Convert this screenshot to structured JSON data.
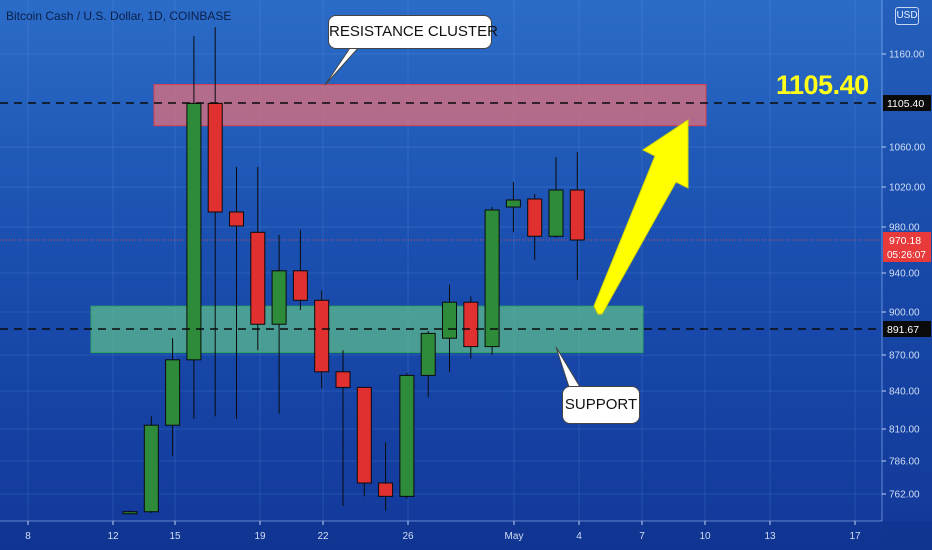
{
  "header": {
    "title": "Bitcoin Cash / U.S. Dollar, 1D, COINBASE",
    "currency": "USD"
  },
  "annotations": {
    "resistance_label": "RESISTANCE CLUSTER",
    "support_label": "SUPPORT",
    "target_price": "1105.40"
  },
  "price_tags": {
    "resistance_level": "1105.40",
    "current_price": "970.18",
    "countdown": "05:26:07",
    "support_level": "891.67"
  },
  "colors": {
    "bull": "#2e8b3a",
    "bear": "#e03030",
    "resistance_zone": "#e3707a",
    "support_zone": "#5fc28a",
    "arrow": "#ffff00",
    "price_line": "#e05050"
  },
  "chart_data": {
    "type": "candlestick",
    "y_ticks": [
      1160.0,
      1105.4,
      1060.0,
      1020.0,
      980.0,
      940.0,
      900.0,
      870.0,
      840.0,
      810.0,
      786.0,
      762.0
    ],
    "x_ticks": [
      "8",
      "12",
      "15",
      "19",
      "22",
      "26",
      "May",
      "4",
      "7",
      "10",
      "13",
      "17"
    ],
    "levels": {
      "resistance": 1105.4,
      "support": 891.67,
      "current": 970.18
    },
    "zones": {
      "resistance": {
        "top": 1126,
        "bottom": 1082
      },
      "support": {
        "top": 906,
        "bottom": 872
      }
    },
    "candles": [
      {
        "date": "Apr 13",
        "open": 746,
        "high": 748,
        "low": 745,
        "close": 747
      },
      {
        "date": "Apr 14",
        "open": 747,
        "high": 820,
        "low": 746,
        "close": 813
      },
      {
        "date": "Apr 15",
        "open": 813,
        "high": 884,
        "low": 790,
        "close": 866
      },
      {
        "date": "Apr 16",
        "open": 866,
        "high": 1180,
        "low": 818,
        "close": 1105
      },
      {
        "date": "Apr 17",
        "open": 1105,
        "high": 1190,
        "low": 820,
        "close": 995
      },
      {
        "date": "Apr 18",
        "open": 995,
        "high": 1040,
        "low": 818,
        "close": 981
      },
      {
        "date": "Apr 19",
        "open": 976,
        "high": 1040,
        "low": 874,
        "close": 894
      },
      {
        "date": "Apr 20",
        "open": 894,
        "high": 974,
        "low": 822,
        "close": 942
      },
      {
        "date": "Apr 21",
        "open": 942,
        "high": 978,
        "low": 902,
        "close": 912
      },
      {
        "date": "Apr 22",
        "open": 912,
        "high": 922,
        "low": 842,
        "close": 856
      },
      {
        "date": "Apr 23",
        "open": 856,
        "high": 874,
        "low": 752,
        "close": 843
      },
      {
        "date": "Apr 24",
        "open": 843,
        "high": 843,
        "low": 760,
        "close": 770
      },
      {
        "date": "Apr 25",
        "open": 770,
        "high": 800,
        "low": 748,
        "close": 760
      },
      {
        "date": "Apr 26",
        "open": 760,
        "high": 855,
        "low": 758,
        "close": 853
      },
      {
        "date": "Apr 27",
        "open": 853,
        "high": 890,
        "low": 835,
        "close": 888
      },
      {
        "date": "Apr 28",
        "open": 884,
        "high": 928,
        "low": 856,
        "close": 910
      },
      {
        "date": "Apr 29",
        "open": 910,
        "high": 916,
        "low": 867,
        "close": 877
      },
      {
        "date": "Apr 30",
        "open": 877,
        "high": 1000,
        "low": 870,
        "close": 997
      },
      {
        "date": "May 1",
        "open": 1000,
        "high": 1025,
        "low": 976,
        "close": 1007
      },
      {
        "date": "May 2",
        "open": 1008,
        "high": 1013,
        "low": 952,
        "close": 973
      },
      {
        "date": "May 3",
        "open": 973,
        "high": 1050,
        "low": 972,
        "close": 1017
      },
      {
        "date": "May 4",
        "open": 1017,
        "high": 1055,
        "low": 933,
        "close": 970.18
      }
    ]
  }
}
